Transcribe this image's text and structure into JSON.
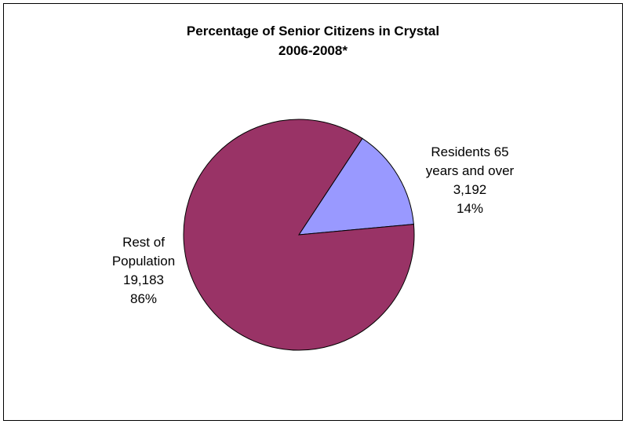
{
  "chart_data": {
    "type": "pie",
    "title": "Percentage of Senior Citizens in Crystal",
    "subtitle": "2006-2008*",
    "slices": [
      {
        "label_lines": [
          "Residents 65",
          "years and over"
        ],
        "value": 3192,
        "value_text": "3,192",
        "percent": 14,
        "percent_text": "14%",
        "color": "#9999FF"
      },
      {
        "label_lines": [
          "Rest of",
          "Population"
        ],
        "value": 19183,
        "value_text": "19,183",
        "percent": 86,
        "percent_text": "86%",
        "color": "#993366"
      }
    ],
    "start_angle_deg": 56.6,
    "direction": "clockwise",
    "legend": "none"
  },
  "colors": {
    "outline": "#000000",
    "background": "#FFFFFF"
  }
}
